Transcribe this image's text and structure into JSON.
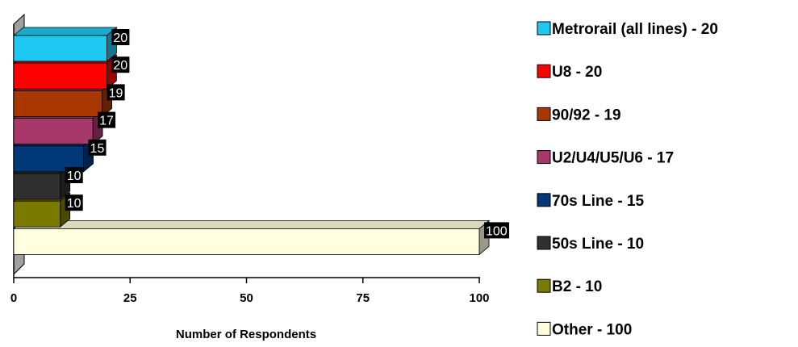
{
  "chart_data": {
    "type": "bar",
    "orientation": "horizontal",
    "style": "3d",
    "categories": [
      "Metrorail (all lines)",
      "U8",
      "90/92",
      "U2/U4/U5/U6",
      "70s Line",
      "50s Line",
      "B2",
      "Other"
    ],
    "values": [
      20,
      20,
      19,
      17,
      15,
      10,
      10,
      100
    ],
    "colors": [
      "#1ec8f0",
      "#ff0000",
      "#a83800",
      "#a8386a",
      "#003878",
      "#303030",
      "#7a7a00",
      "#ffffe0"
    ],
    "data_labels": [
      "20",
      "20",
      "19",
      "17",
      "15",
      "10",
      "10",
      "100"
    ],
    "legend_entries": [
      "Metrorail (all lines) - 20",
      "U8 - 20",
      "90/92 - 19",
      "U2/U4/U5/U6 - 17",
      "70s Line - 15",
      "50s Line - 10",
      "B2 - 10",
      "Other - 100"
    ],
    "xlabel": "Number of Respondents",
    "xlim": [
      0,
      100
    ],
    "xticks": [
      0,
      25,
      50,
      75,
      100
    ],
    "xtick_labels": [
      "0",
      "25",
      "50",
      "75",
      "100"
    ],
    "legend_position": "right",
    "grid": false
  }
}
